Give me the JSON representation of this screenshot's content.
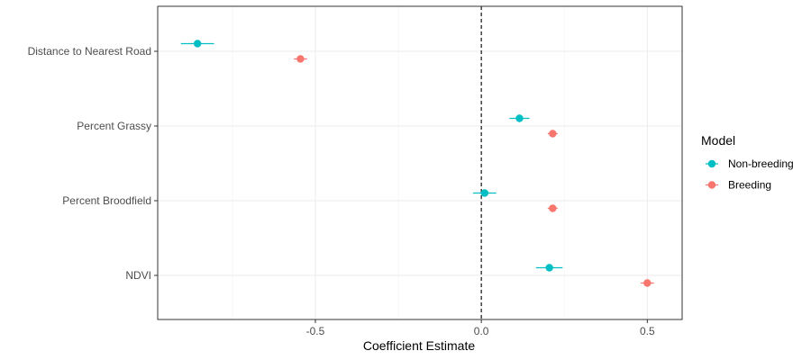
{
  "chart_data": {
    "type": "scatter",
    "subtype": "coefficient-plot",
    "xlabel": "Coefficient Estimate",
    "ylabel": "",
    "xlim": [
      -0.975,
      0.605
    ],
    "xticks": [
      -0.5,
      0.0,
      0.5
    ],
    "xtick_labels": [
      "-0.5",
      "0.0",
      "0.5"
    ],
    "categories": [
      "Distance to Nearest Road",
      "Percent Grassy",
      "Percent Broodfield",
      "NDVI"
    ],
    "reference_line": {
      "x": 0,
      "style": "dashed"
    },
    "grid": true,
    "legend": {
      "title": "Model",
      "placement": "right"
    },
    "series": [
      {
        "name": "Non-breeding",
        "color": "#00BFC4",
        "estimates": [
          -0.855,
          0.115,
          0.01,
          0.205
        ],
        "lower": [
          -0.905,
          0.085,
          -0.025,
          0.165
        ],
        "upper": [
          -0.805,
          0.145,
          0.045,
          0.245
        ]
      },
      {
        "name": "Breeding",
        "color": "#F8766D",
        "estimates": [
          -0.545,
          0.215,
          0.215,
          0.5
        ],
        "lower": [
          -0.565,
          0.2,
          0.2,
          0.48
        ],
        "upper": [
          -0.525,
          0.23,
          0.23,
          0.52
        ]
      }
    ]
  }
}
